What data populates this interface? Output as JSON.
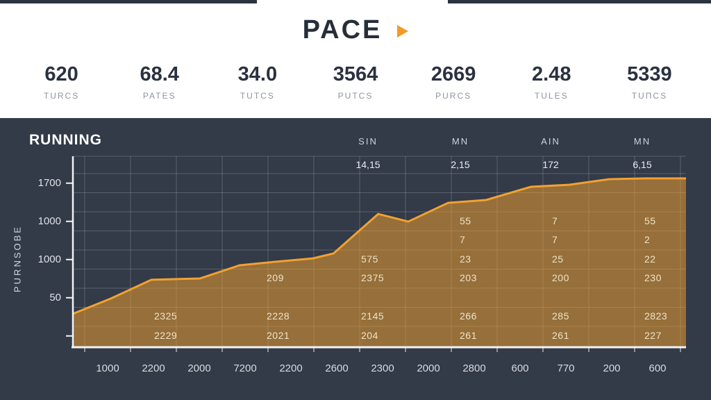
{
  "header": {
    "title": "PACE",
    "play_icon": "play-triangle",
    "accent_color": "#f09b28",
    "stats": [
      {
        "value": "620",
        "label": "TURCS"
      },
      {
        "value": "68.4",
        "label": "PATES"
      },
      {
        "value": "34.0",
        "label": "TUTCS"
      },
      {
        "value": "3564",
        "label": "PUTCS"
      },
      {
        "value": "2669",
        "label": "PURCS"
      },
      {
        "value": "2.48",
        "label": "TULES"
      },
      {
        "value": "5339",
        "label": "TUΠCS"
      }
    ]
  },
  "chart_panel": {
    "title": "RUNNING",
    "y_axis_title": "PURNSOBE",
    "background_color": "#333a48",
    "line_color": "#f2a130",
    "fill_color": "rgba(242,161,46,0.52)",
    "grid_color": "rgba(255,255,255,0.2)",
    "axis_color": "#f2f3f5"
  },
  "chart_data": {
    "type": "area",
    "title": "RUNNING",
    "ylabel": "PURNSOBE",
    "grid": "on",
    "column_headers": [
      "SIN",
      "MN",
      "AIN",
      "MN"
    ],
    "header_row_values": [
      "14,15",
      "2,15",
      "172",
      "6,15"
    ],
    "y_tick_labels": [
      "1700",
      "1000",
      "1000",
      "50"
    ],
    "x_tick_labels": [
      "1000",
      "2200",
      "2000",
      "7200",
      "2200",
      "2600",
      "2300",
      "2000",
      "2800",
      "600",
      "770",
      "200",
      "600"
    ],
    "line_points_pct": [
      [
        0,
        82.5
      ],
      [
        6.2,
        74.5
      ],
      [
        12.8,
        64.7
      ],
      [
        20.7,
        64.0
      ],
      [
        27.2,
        57.1
      ],
      [
        32.8,
        55.3
      ],
      [
        39.1,
        53.5
      ],
      [
        42.5,
        50.9
      ],
      [
        49.8,
        30.2
      ],
      [
        54.7,
        34.2
      ],
      [
        61.2,
        24.4
      ],
      [
        67.4,
        22.9
      ],
      [
        74.7,
        16.0
      ],
      [
        81.0,
        14.9
      ],
      [
        87.5,
        12.0
      ],
      [
        93.4,
        11.6
      ],
      [
        100,
        11.6
      ]
    ],
    "cell_values": [
      {
        "col": 0,
        "row": 4,
        "value": "2325"
      },
      {
        "col": 0,
        "row": 5,
        "value": "2229"
      },
      {
        "col": 1,
        "row": 3,
        "value": "209"
      },
      {
        "col": 1,
        "row": 4,
        "value": "2228"
      },
      {
        "col": 1,
        "row": 5,
        "value": "2021"
      },
      {
        "col": 2,
        "row": 2,
        "value": "575"
      },
      {
        "col": 2,
        "row": 3,
        "value": "2375"
      },
      {
        "col": 2,
        "row": 4,
        "value": "2145"
      },
      {
        "col": 2,
        "row": 5,
        "value": "204"
      },
      {
        "col": 3,
        "row": 0,
        "value": "55"
      },
      {
        "col": 3,
        "row": 1,
        "value": "7"
      },
      {
        "col": 3,
        "row": 2,
        "value": "23"
      },
      {
        "col": 3,
        "row": 3,
        "value": "203"
      },
      {
        "col": 3,
        "row": 4,
        "value": "266"
      },
      {
        "col": 3,
        "row": 5,
        "value": "261"
      },
      {
        "col": 4,
        "row": 0,
        "value": "7"
      },
      {
        "col": 4,
        "row": 1,
        "value": "7"
      },
      {
        "col": 4,
        "row": 2,
        "value": "25"
      },
      {
        "col": 4,
        "row": 3,
        "value": "200"
      },
      {
        "col": 4,
        "row": 4,
        "value": "285"
      },
      {
        "col": 4,
        "row": 5,
        "value": "261"
      },
      {
        "col": 5,
        "row": 0,
        "value": "55"
      },
      {
        "col": 5,
        "row": 1,
        "value": "2"
      },
      {
        "col": 5,
        "row": 2,
        "value": "22"
      },
      {
        "col": 5,
        "row": 3,
        "value": "230"
      },
      {
        "col": 5,
        "row": 4,
        "value": "2823"
      },
      {
        "col": 5,
        "row": 5,
        "value": "227"
      }
    ]
  }
}
